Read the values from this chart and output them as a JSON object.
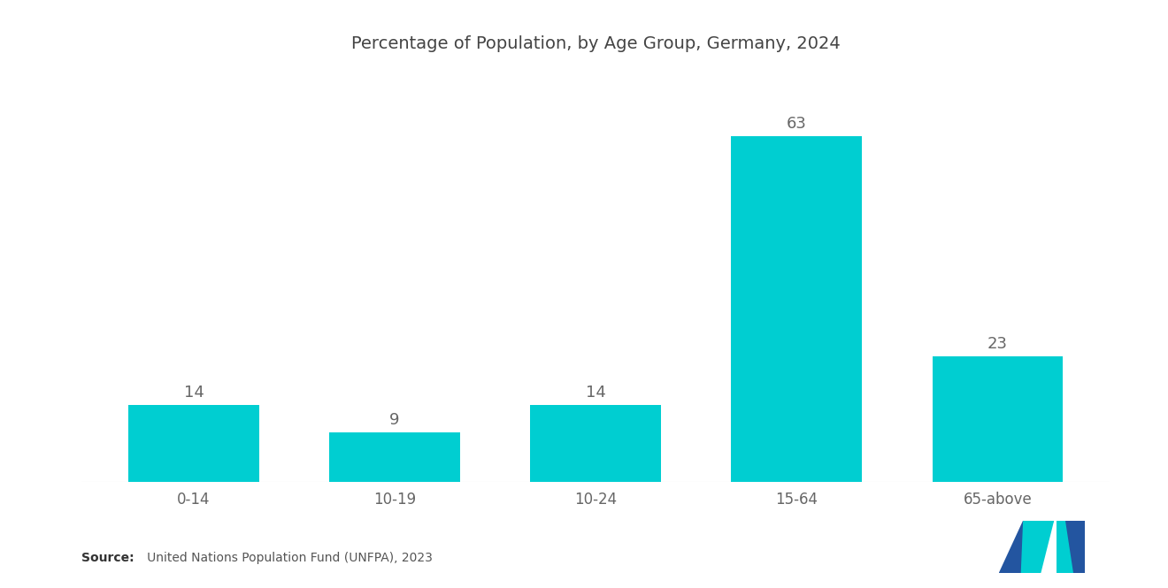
{
  "title": "Percentage of Population, by Age Group, Germany, 2024",
  "categories": [
    "0-14",
    "10-19",
    "10-24",
    "15-64",
    "65-above"
  ],
  "values": [
    14,
    9,
    14,
    63,
    23
  ],
  "bar_color": "#00CED1",
  "value_label_color": "#666666",
  "value_label_fontsize": 13,
  "title_fontsize": 14,
  "xlabel_fontsize": 12,
  "background_color": "#ffffff",
  "source_bold": "Source:",
  "source_rest": "   United Nations Population Fund (UNFPA), 2023",
  "ylim": [
    0,
    75
  ],
  "bar_width": 0.65,
  "logo_navy": "#2355a0",
  "logo_teal": "#00CED1"
}
